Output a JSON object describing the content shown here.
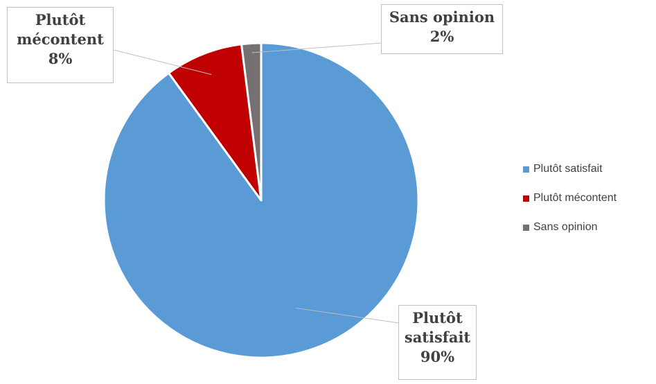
{
  "chart_data": {
    "type": "pie",
    "categories": [
      "Plutôt satisfait",
      "Plutôt mécontent",
      "Sans opinion"
    ],
    "values": [
      90,
      8,
      2
    ],
    "unit": "%",
    "colors": [
      "#5B9BD5",
      "#C00000",
      "#767171"
    ],
    "data_labels": [
      {
        "lines": [
          "Plutôt",
          "satisfait",
          "90%"
        ]
      },
      {
        "lines": [
          "Plutôt",
          "mécontent",
          "8%"
        ]
      },
      {
        "lines": [
          "Sans opinion",
          "2%"
        ]
      }
    ],
    "legend": {
      "position": "right",
      "entries": [
        "Plutôt satisfait",
        "Plutôt mécontent",
        "Sans opinion"
      ]
    }
  }
}
